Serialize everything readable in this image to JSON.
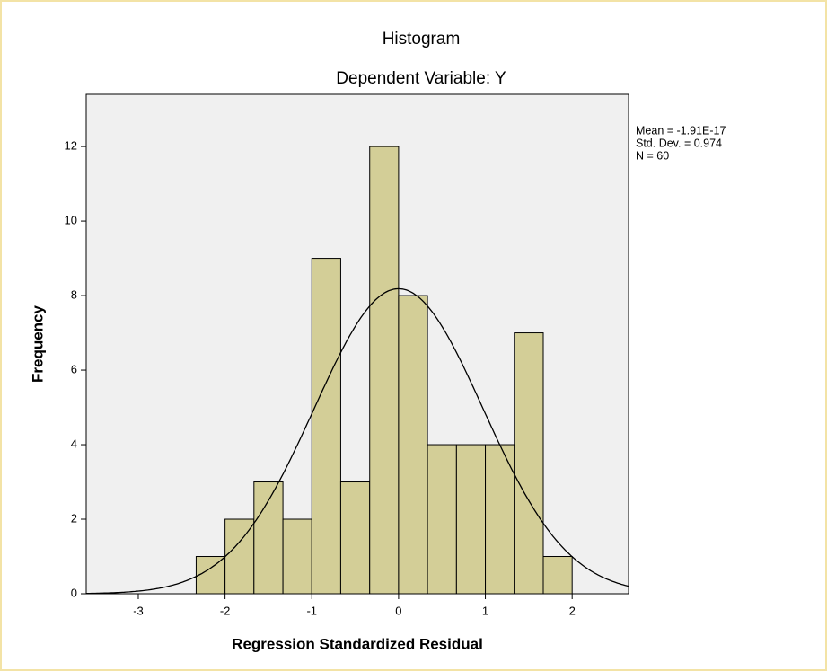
{
  "chart_data": {
    "type": "histogram",
    "title": "Histogram",
    "subtitle": "Dependent Variable: Y",
    "x_label": "Regression Standardized Residual",
    "y_label": "Frequency",
    "bins": [
      -2.333,
      -2,
      -1.667,
      -1.333,
      -1,
      -0.667,
      -0.333,
      0,
      0.333,
      0.667,
      1,
      1.333,
      1.667,
      2
    ],
    "counts": [
      1,
      2,
      3,
      2,
      9,
      3,
      12,
      8,
      4,
      4,
      4,
      7,
      1
    ],
    "color": "#d3ce97",
    "xlim": [
      -3.6,
      2.65
    ],
    "ylim": [
      0,
      13.4
    ],
    "xticks": [
      -3,
      -2,
      -1,
      0,
      1,
      2
    ],
    "yticks": [
      0,
      2,
      4,
      6,
      8,
      10,
      12
    ],
    "stats": [
      {
        "value": -1.91e-17,
        "label": "Mean = -1.91E-17"
      },
      {
        "value": 0.974,
        "label": "Std. Dev. = 0.974"
      },
      {
        "value": 60,
        "label": "N = 60"
      }
    ],
    "normal_curve": true
  }
}
